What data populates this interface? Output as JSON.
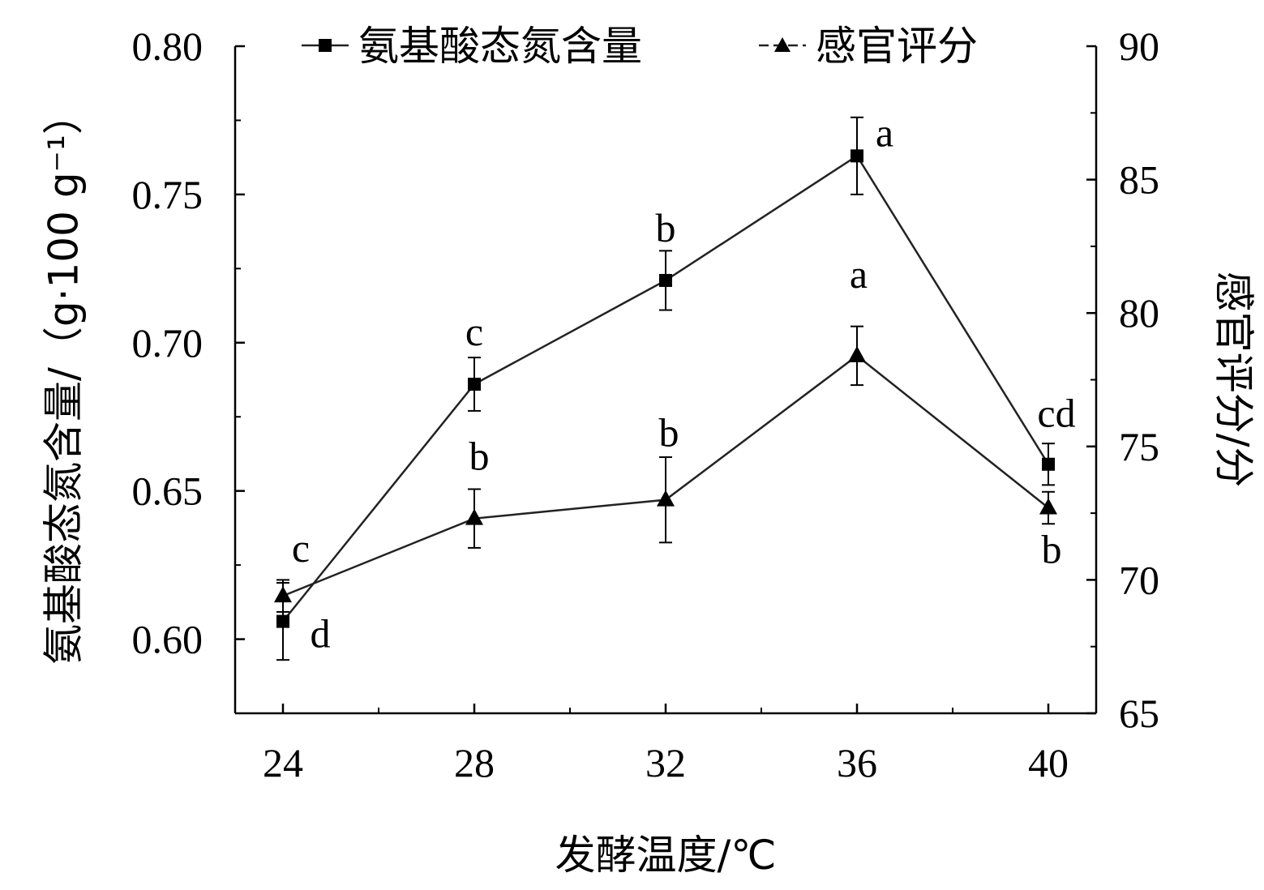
{
  "chart_data": {
    "type": "line",
    "xlabel": "发酵温度/℃",
    "ylabel_left": "氨基酸态氮含量/（g·100 g⁻¹）",
    "ylabel_right": "感官评分/分",
    "x": [
      24,
      28,
      32,
      36,
      40
    ],
    "x_ticks": [
      "24",
      "28",
      "32",
      "36",
      "40"
    ],
    "xlim": [
      23,
      41
    ],
    "ylim_left": [
      0.575,
      0.8
    ],
    "yticks_left": [
      "0.60",
      "0.65",
      "0.70",
      "0.75",
      "0.80"
    ],
    "ylim_right": [
      65,
      90
    ],
    "yticks_right": [
      "65",
      "70",
      "75",
      "80",
      "85",
      "90"
    ],
    "legend_position": "top-center",
    "grid": false,
    "series": [
      {
        "name": "氨基酸态氮含量",
        "axis": "left",
        "marker": "square",
        "values": [
          0.606,
          0.686,
          0.721,
          0.763,
          0.659
        ],
        "errors": [
          0.013,
          0.009,
          0.01,
          0.013,
          0.007
        ],
        "labels": [
          "d",
          "c",
          "b",
          "a",
          "cd"
        ]
      },
      {
        "name": "感官评分",
        "axis": "right",
        "marker": "triangle",
        "values": [
          69.4,
          72.3,
          73.0,
          78.4,
          72.7
        ],
        "errors": [
          0.6,
          1.1,
          1.6,
          1.1,
          0.6
        ],
        "labels": [
          "c",
          "b",
          "b",
          "a",
          "b"
        ]
      }
    ]
  }
}
